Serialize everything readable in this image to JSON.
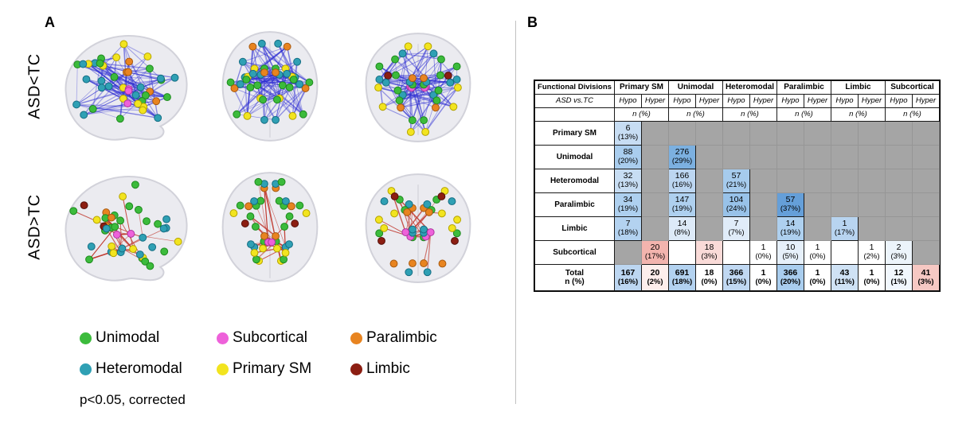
{
  "panel_a": {
    "label": "A",
    "rows": [
      {
        "id": "asd-lt-tc",
        "label": "ASD<TC",
        "edge_color": "#2e2ed2",
        "edge_opacity": 0.45,
        "edge_count": 140,
        "converge": false
      },
      {
        "id": "asd-gt-tc",
        "label": "ASD>TC",
        "edge_color": "#c0392f",
        "edge_opacity": 0.8,
        "edge_count": 26,
        "converge": true
      }
    ],
    "views": [
      "sagittal",
      "axial",
      "coronal"
    ],
    "node_palette": [
      {
        "name": "unimodal",
        "fill": "#3cbb3c",
        "stroke": "#1d8a1d",
        "weight": 14
      },
      {
        "name": "heteromodal",
        "fill": "#2fa0b4",
        "stroke": "#156e84",
        "weight": 11
      },
      {
        "name": "primary-sm",
        "fill": "#f2e41f",
        "stroke": "#b5a400",
        "weight": 7
      },
      {
        "name": "paralimbic",
        "fill": "#e88420",
        "stroke": "#a85a10",
        "weight": 7
      },
      {
        "name": "subcortical",
        "fill": "#ee61da",
        "stroke": "#ad35a0",
        "weight": 4
      },
      {
        "name": "limbic",
        "fill": "#8c1e12",
        "stroke": "#54100a",
        "weight": 2
      }
    ],
    "legend": {
      "items": [
        {
          "label": "Unimodal",
          "color": "#3cbb3c"
        },
        {
          "label": "Subcortical",
          "color": "#ee61da"
        },
        {
          "label": "Paralimbic",
          "color": "#e88420"
        },
        {
          "label": "Heteromodal",
          "color": "#2fa0b4"
        },
        {
          "label": "Primary SM",
          "color": "#f2e41f"
        },
        {
          "label": "Limbic",
          "color": "#8c1e12"
        }
      ],
      "note": "p<0.05, corrected"
    }
  },
  "panel_b": {
    "label": "B",
    "table": {
      "corner_header": "Functional Divisions",
      "comparison_label": "ASD vs.TC",
      "sub_headers": [
        "Hypo",
        "Hyper"
      ],
      "unit_label": "n (%)",
      "divisions": [
        "Primary SM",
        "Unimodal",
        "Heteromodal",
        "Paralimbic",
        "Limbic",
        "Subcortical"
      ],
      "gray": "#a5a5a5",
      "rows": [
        {
          "label": "Primary SM",
          "cells": [
            [
              "6",
              "(13%)",
              "#c7ddf3"
            ],
            [
              "",
              "",
              "#a5a5a5"
            ],
            [
              "",
              "",
              "#a5a5a5"
            ],
            [
              "",
              "",
              "#a5a5a5"
            ],
            [
              "",
              "",
              "#a5a5a5"
            ],
            [
              "",
              "",
              "#a5a5a5"
            ],
            [
              "",
              "",
              "#a5a5a5"
            ],
            [
              "",
              "",
              "#a5a5a5"
            ],
            [
              "",
              "",
              "#a5a5a5"
            ],
            [
              "",
              "",
              "#a5a5a5"
            ],
            [
              "",
              "",
              "#a5a5a5"
            ],
            [
              "",
              "",
              "#a5a5a5"
            ]
          ]
        },
        {
          "label": "Unimodal",
          "cells": [
            [
              "88",
              "(20%)",
              "#a9cdee"
            ],
            [
              "",
              "",
              "#a5a5a5"
            ],
            [
              "276",
              "(29%)",
              "#7cb0e0"
            ],
            [
              "",
              "",
              "#a5a5a5"
            ],
            [
              "",
              "",
              "#a5a5a5"
            ],
            [
              "",
              "",
              "#a5a5a5"
            ],
            [
              "",
              "",
              "#a5a5a5"
            ],
            [
              "",
              "",
              "#a5a5a5"
            ],
            [
              "",
              "",
              "#a5a5a5"
            ],
            [
              "",
              "",
              "#a5a5a5"
            ],
            [
              "",
              "",
              "#a5a5a5"
            ],
            [
              "",
              "",
              "#a5a5a5"
            ]
          ]
        },
        {
          "label": "Heteromodal",
          "cells": [
            [
              "32",
              "(13%)",
              "#c7ddf3"
            ],
            [
              "",
              "",
              "#a5a5a5"
            ],
            [
              "166",
              "(16%)",
              "#bcd6f1"
            ],
            [
              "",
              "",
              "#a5a5a5"
            ],
            [
              "57",
              "(21%)",
              "#a6cbed"
            ],
            [
              "",
              "",
              "#a5a5a5"
            ],
            [
              "",
              "",
              "#a5a5a5"
            ],
            [
              "",
              "",
              "#a5a5a5"
            ],
            [
              "",
              "",
              "#a5a5a5"
            ],
            [
              "",
              "",
              "#a5a5a5"
            ],
            [
              "",
              "",
              "#a5a5a5"
            ],
            [
              "",
              "",
              "#a5a5a5"
            ]
          ]
        },
        {
          "label": "Paralimbic",
          "cells": [
            [
              "34",
              "(19%)",
              "#aed0ef"
            ],
            [
              "",
              "",
              "#a5a5a5"
            ],
            [
              "147",
              "(19%)",
              "#aed0ef"
            ],
            [
              "",
              "",
              "#a5a5a5"
            ],
            [
              "104",
              "(24%)",
              "#98c2e9"
            ],
            [
              "",
              "",
              "#a5a5a5"
            ],
            [
              "57",
              "(37%)",
              "#659fd9"
            ],
            [
              "",
              "",
              "#a5a5a5"
            ],
            [
              "",
              "",
              "#a5a5a5"
            ],
            [
              "",
              "",
              "#a5a5a5"
            ],
            [
              "",
              "",
              "#a5a5a5"
            ],
            [
              "",
              "",
              "#a5a5a5"
            ]
          ]
        },
        {
          "label": "Limbic",
          "cells": [
            [
              "7",
              "(18%)",
              "#b3d2f0"
            ],
            [
              "",
              "",
              "#a5a5a5"
            ],
            [
              "14",
              "(8%)",
              "#ddeaf8"
            ],
            [
              "",
              "",
              "#a5a5a5"
            ],
            [
              "7",
              "(7%)",
              "#e0ecf9"
            ],
            [
              "",
              "",
              "#a5a5a5"
            ],
            [
              "14",
              "(19%)",
              "#aed0ef"
            ],
            [
              "",
              "",
              "#a5a5a5"
            ],
            [
              "1",
              "(17%)",
              "#b8d4f0"
            ],
            [
              "",
              "",
              "#a5a5a5"
            ],
            [
              "",
              "",
              "#a5a5a5"
            ],
            [
              "",
              "",
              "#a5a5a5"
            ]
          ]
        },
        {
          "label": "Subcortical",
          "cells": [
            [
              "",
              "",
              "#a5a5a5"
            ],
            [
              "20",
              "(17%)",
              "#f3b4ae"
            ],
            [
              "",
              "",
              "#ffffff"
            ],
            [
              "18",
              "(3%)",
              "#fadbd8"
            ],
            [
              "",
              "",
              "#ffffff"
            ],
            [
              "1",
              "(0%)",
              "#ffffff"
            ],
            [
              "10",
              "(5%)",
              "#e6f0fa"
            ],
            [
              "1",
              "(0%)",
              "#ffffff"
            ],
            [
              "",
              "",
              "#ffffff"
            ],
            [
              "1",
              "(2%)",
              "#ffffff"
            ],
            [
              "2",
              "(3%)",
              "#ecf4fb"
            ],
            [
              "",
              "",
              "#a5a5a5"
            ]
          ]
        }
      ],
      "total": {
        "label": "Total",
        "sublabel": "n (%)",
        "cells": [
          [
            "167",
            "(16%)",
            "#bcd6f1"
          ],
          [
            "20",
            "(2%)",
            "#fdeeec"
          ],
          [
            "691",
            "(18%)",
            "#b3d2f0"
          ],
          [
            "18",
            "(0%)",
            "#ffffff"
          ],
          [
            "366",
            "(15%)",
            "#c0d8f2"
          ],
          [
            "1",
            "(0%)",
            "#ffffff"
          ],
          [
            "366",
            "(20%)",
            "#a9cdee"
          ],
          [
            "1",
            "(0%)",
            "#ffffff"
          ],
          [
            "43",
            "(11%)",
            "#cfe2f5"
          ],
          [
            "1",
            "(0%)",
            "#ffffff"
          ],
          [
            "12",
            "(1%)",
            "#f1f7fd"
          ],
          [
            "41",
            "(3%)",
            "#f6c8c3"
          ]
        ]
      }
    }
  }
}
